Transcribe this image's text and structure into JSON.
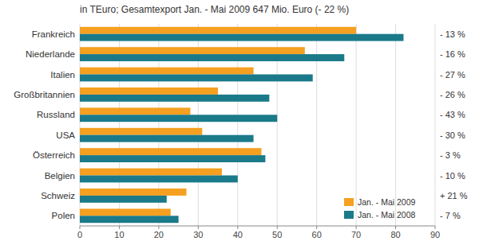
{
  "chart_data": {
    "type": "bar",
    "orientation": "horizontal",
    "title": "in TEuro; Gesamtexport Jan. - Mai 2009 647 Mio. Euro (- 22 %)",
    "categories": [
      "Frankreich",
      "Niederlande",
      "Italien",
      "Großbritannien",
      "Russland",
      "USA",
      "Österreich",
      "Belgien",
      "Schweiz",
      "Polen"
    ],
    "series": [
      {
        "name": "Jan. - Mai 2009",
        "color": "#F5A020",
        "values": [
          70,
          57,
          44,
          35,
          28,
          31,
          46,
          36,
          27,
          23
        ]
      },
      {
        "name": "Jan. - Mai 2008",
        "color": "#1A7A8A",
        "values": [
          82,
          67,
          59,
          48,
          50,
          44,
          47,
          40,
          22,
          25
        ]
      }
    ],
    "annotations": [
      "- 13 %",
      "- 16 %",
      "- 27 %",
      "- 26 %",
      "- 43 %",
      "- 30 %",
      "- 3 %",
      "- 10 %",
      "+ 21 %",
      "- 7 %"
    ],
    "xlim": [
      0,
      90
    ],
    "xticks": [
      0,
      10,
      20,
      30,
      40,
      50,
      60,
      70,
      80,
      90
    ],
    "grid": true,
    "legend": "lower right"
  }
}
